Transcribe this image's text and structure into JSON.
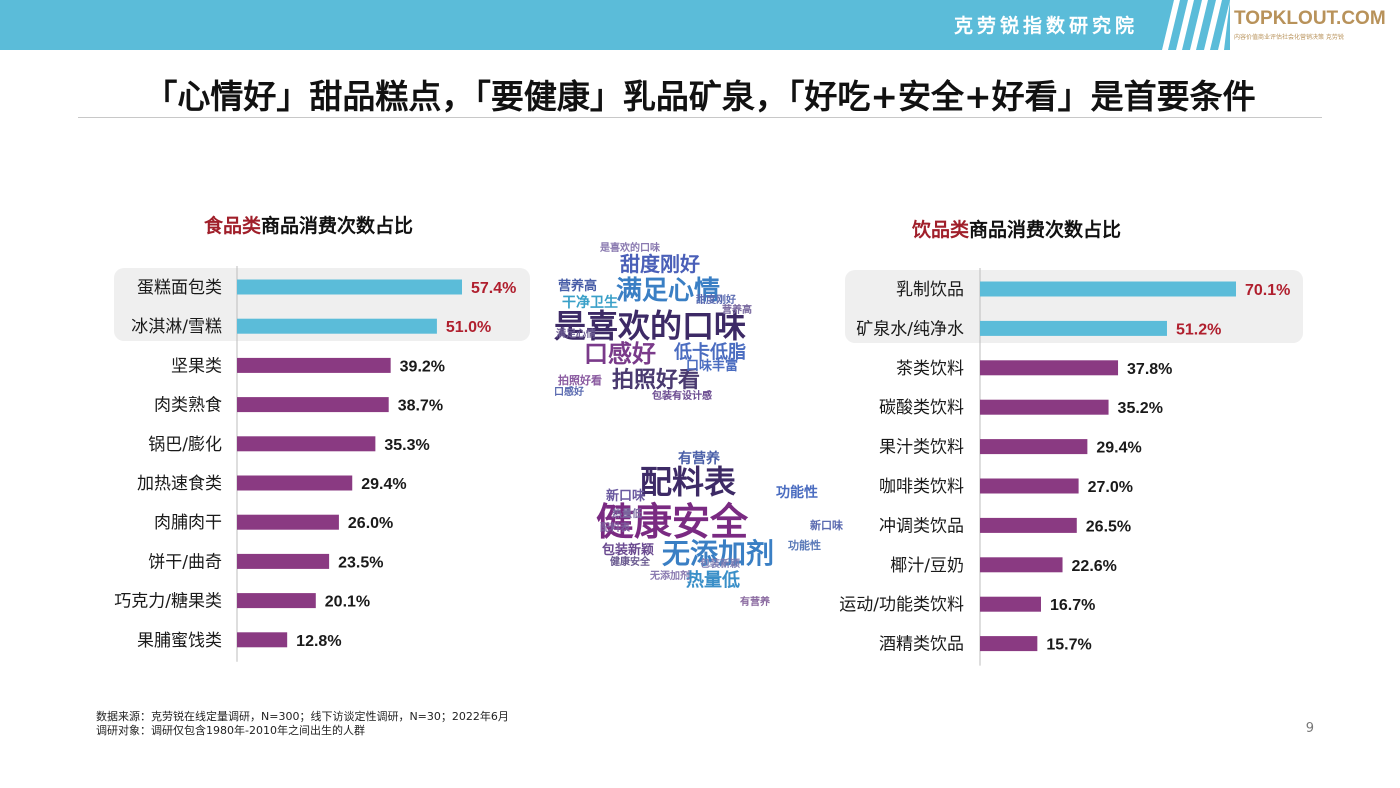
{
  "header": {
    "brand": "克劳锐指数研究院",
    "logo_text": "TOPKLOUT.COM",
    "logo_sub": "内容价值商业评估社会化营销决策  克劳锐"
  },
  "title": "「心情好」甜品糕点，「要健康」乳品矿泉，「好吃+安全+好看」是首要条件",
  "colors": {
    "highlight": "#5bbcd9",
    "normal": "#8a3a82",
    "highlight_label": "#b01f2e",
    "topbar": "#5bbcd9"
  },
  "left_subtitle": {
    "highlight": "食品类",
    "rest": "商品消费次数占比"
  },
  "right_subtitle": {
    "highlight": "饮品类",
    "rest": "商品消费次数占比"
  },
  "chart_data": [
    {
      "type": "bar",
      "orientation": "horizontal",
      "title": "食品类商品消费次数占比",
      "categories": [
        "蛋糕面包类",
        "冰淇淋/雪糕",
        "坚果类",
        "肉类熟食",
        "锅巴/膨化",
        "加热速食类",
        "肉脯肉干",
        "饼干/曲奇",
        "巧克力/糖果类",
        "果脯蜜饯类"
      ],
      "values": [
        57.4,
        51.0,
        39.2,
        38.7,
        35.3,
        29.4,
        26.0,
        23.5,
        20.1,
        12.8
      ],
      "labels": [
        "57.4%",
        "51.0%",
        "39.2%",
        "38.7%",
        "35.3%",
        "29.4%",
        "26.0%",
        "23.5%",
        "20.1%",
        "12.8%"
      ],
      "highlighted": [
        0,
        1
      ],
      "unit": "%",
      "xlim": [
        0,
        70
      ]
    },
    {
      "type": "bar",
      "orientation": "horizontal",
      "title": "饮品类商品消费次数占比",
      "categories": [
        "乳制饮品",
        "矿泉水/纯净水",
        "茶类饮料",
        "碳酸类饮料",
        "果汁类饮料",
        "咖啡类饮料",
        "冲调类饮品",
        "椰汁/豆奶",
        "运动/功能类饮料",
        "酒精类饮品"
      ],
      "values": [
        70.1,
        51.2,
        37.8,
        35.2,
        29.4,
        27.0,
        26.5,
        22.6,
        16.7,
        15.7
      ],
      "labels": [
        "70.1%",
        "51.2%",
        "37.8%",
        "35.2%",
        "29.4%",
        "27.0%",
        "26.5%",
        "22.6%",
        "16.7%",
        "15.7%"
      ],
      "highlighted": [
        0,
        1
      ],
      "unit": "%",
      "xlim": [
        0,
        80
      ]
    }
  ],
  "cloud_top": {
    "words": [
      {
        "text": "是喜欢的口味",
        "color": "#3d2a66"
      },
      {
        "text": "满足心情",
        "color": "#3a7fc4"
      },
      {
        "text": "甜度刚好",
        "color": "#4a5fb8"
      },
      {
        "text": "口感好",
        "color": "#7a3a8a"
      },
      {
        "text": "拍照好看",
        "color": "#4a3a70"
      },
      {
        "text": "低卡低脂",
        "color": "#4a6cc0"
      },
      {
        "text": "干净卫生",
        "color": "#3aa0c8"
      },
      {
        "text": "营养高",
        "color": "#4a5fa8"
      },
      {
        "text": "口味丰富",
        "color": "#4a6cc0"
      },
      {
        "text": "包装有设计感",
        "color": "#6a4a90"
      },
      {
        "text": "满足心情",
        "color": "#6a5a90"
      },
      {
        "text": "拍照好看",
        "color": "#8a5aa0"
      },
      {
        "text": "口感好",
        "color": "#5a6ab0"
      },
      {
        "text": "甜度刚好",
        "color": "#5a6ab0"
      },
      {
        "text": "营养高",
        "color": "#7a6aa0"
      },
      {
        "text": "是喜欢的口味",
        "color": "#8a7ab0"
      }
    ]
  },
  "cloud_bottom": {
    "words": [
      {
        "text": "健康安全",
        "color": "#7a2a82"
      },
      {
        "text": "配料表",
        "color": "#3d2a66"
      },
      {
        "text": "无添加剂",
        "color": "#3a7fc4"
      },
      {
        "text": "有营养",
        "color": "#4a5fa8"
      },
      {
        "text": "功能性",
        "color": "#4a6cc0"
      },
      {
        "text": "热量低",
        "color": "#3a8fc8"
      },
      {
        "text": "包装新颖",
        "color": "#6a4a90"
      },
      {
        "text": "新口味",
        "color": "#6a5aa0"
      },
      {
        "text": "配料表",
        "color": "#7a5a9a"
      },
      {
        "text": "新口味",
        "color": "#5a6ab0"
      },
      {
        "text": "功能性",
        "color": "#5a7ab8"
      },
      {
        "text": "热量低",
        "color": "#7a6aa0"
      },
      {
        "text": "无添加剂",
        "color": "#8a7ab0"
      },
      {
        "text": "健康安全",
        "color": "#6a5a90"
      },
      {
        "text": "有营养",
        "color": "#8a6aa0"
      },
      {
        "text": "包装新颖",
        "color": "#7a7ab0"
      }
    ]
  },
  "footer": {
    "source": "数据来源：克劳锐在线定量调研，N=300；线下访谈定性调研，N=30；2022年6月",
    "subject": "调研对象：调研仅包含1980年-2010年之间出生的人群"
  },
  "page_number": "9"
}
